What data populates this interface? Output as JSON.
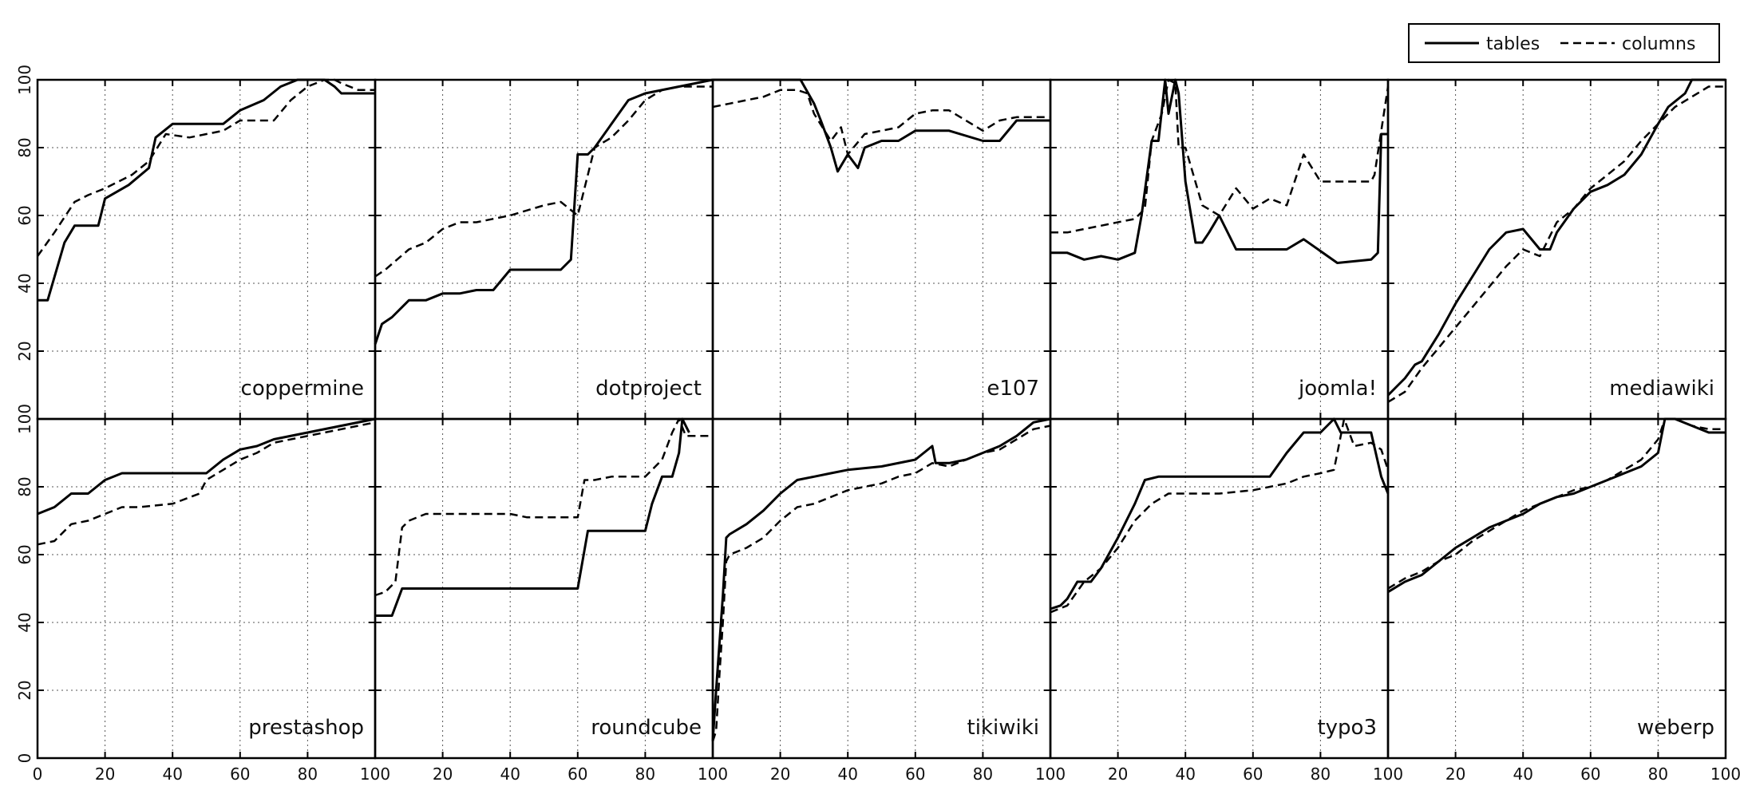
{
  "chart_data": {
    "type": "line",
    "layout": "small-multiples",
    "rows": 2,
    "cols": 5,
    "xlim": [
      0,
      100
    ],
    "ylim": [
      0,
      100
    ],
    "x_ticks": [
      0,
      20,
      40,
      60,
      80,
      100
    ],
    "y_ticks": [
      0,
      20,
      40,
      60,
      80,
      100
    ],
    "grid": true,
    "legend": {
      "position": "top-right",
      "entries": [
        {
          "label": "tables",
          "style": "solid"
        },
        {
          "label": "columns",
          "style": "dashed"
        }
      ]
    },
    "colors": {
      "line": "#000000",
      "grid": "#555555",
      "frame": "#000000"
    },
    "panels": [
      {
        "name": "coppermine",
        "series": [
          {
            "name": "tables",
            "x": [
              0,
              3,
              8,
              11,
              18,
              20,
              27,
              33,
              35,
              40,
              55,
              60,
              67,
              72,
              77,
              82,
              85,
              88,
              90,
              100
            ],
            "y": [
              35,
              35,
              52,
              57,
              57,
              65,
              69,
              74,
              83,
              87,
              87,
              91,
              94,
              98,
              100,
              100,
              100,
              98,
              96,
              96
            ]
          },
          {
            "name": "columns",
            "x": [
              0,
              5,
              11,
              15,
              20,
              28,
              33,
              38,
              45,
              55,
              60,
              70,
              75,
              80,
              85,
              88,
              90,
              95,
              100
            ],
            "y": [
              48,
              55,
              64,
              66,
              68,
              72,
              76,
              84,
              83,
              85,
              88,
              88,
              94,
              98,
              100,
              100,
              99,
              97,
              97
            ]
          }
        ]
      },
      {
        "name": "dotproject",
        "series": [
          {
            "name": "tables",
            "x": [
              0,
              2,
              5,
              10,
              15,
              20,
              25,
              30,
              35,
              40,
              45,
              50,
              55,
              58,
              60,
              63,
              65,
              70,
              75,
              80,
              90,
              100
            ],
            "y": [
              22,
              28,
              30,
              35,
              35,
              37,
              37,
              38,
              38,
              44,
              44,
              44,
              44,
              47,
              78,
              78,
              80,
              87,
              94,
              96,
              98,
              100
            ]
          },
          {
            "name": "columns",
            "x": [
              0,
              3,
              10,
              15,
              20,
              25,
              30,
              40,
              50,
              55,
              60,
              65,
              70,
              75,
              80,
              85,
              90,
              95,
              100
            ],
            "y": [
              42,
              44,
              50,
              52,
              56,
              58,
              58,
              60,
              63,
              64,
              60,
              80,
              83,
              88,
              94,
              97,
              98,
              98,
              98
            ]
          }
        ]
      },
      {
        "name": "e107",
        "series": [
          {
            "name": "tables",
            "x": [
              0,
              5,
              10,
              20,
              26,
              30,
              32,
              35,
              37,
              40,
              43,
              45,
              50,
              55,
              60,
              70,
              80,
              85,
              90,
              100
            ],
            "y": [
              100,
              100,
              100,
              100,
              100,
              93,
              88,
              80,
              73,
              78,
              74,
              80,
              82,
              82,
              85,
              85,
              82,
              82,
              88,
              88
            ]
          },
          {
            "name": "columns",
            "x": [
              0,
              5,
              10,
              15,
              20,
              25,
              28,
              30,
              35,
              38,
              40,
              45,
              50,
              55,
              60,
              65,
              70,
              80,
              85,
              90,
              100
            ],
            "y": [
              92,
              93,
              94,
              95,
              97,
              97,
              96,
              90,
              82,
              86,
              78,
              84,
              85,
              86,
              90,
              91,
              91,
              85,
              88,
              89,
              89
            ]
          }
        ]
      },
      {
        "name": "joomla!",
        "series": [
          {
            "name": "tables",
            "x": [
              0,
              5,
              10,
              15,
              20,
              25,
              27,
              30,
              32,
              34,
              35,
              37,
              38,
              40,
              43,
              45,
              47,
              50,
              55,
              60,
              70,
              75,
              85,
              95,
              97,
              98,
              100
            ],
            "y": [
              49,
              49,
              47,
              48,
              47,
              49,
              60,
              82,
              82,
              100,
              90,
              100,
              96,
              70,
              52,
              52,
              55,
              60,
              50,
              50,
              50,
              53,
              46,
              47,
              49,
              84,
              84
            ]
          },
          {
            "name": "columns",
            "x": [
              0,
              5,
              10,
              15,
              20,
              25,
              28,
              30,
              33,
              35,
              37,
              38,
              40,
              45,
              50,
              55,
              60,
              65,
              70,
              75,
              80,
              95,
              96,
              100
            ],
            "y": [
              55,
              55,
              56,
              57,
              58,
              59,
              62,
              82,
              90,
              100,
              99,
              80,
              80,
              63,
              60,
              68,
              62,
              65,
              63,
              78,
              70,
              70,
              72,
              98
            ]
          }
        ]
      },
      {
        "name": "mediawiki",
        "series": [
          {
            "name": "tables",
            "x": [
              0,
              3,
              5,
              8,
              10,
              15,
              20,
              25,
              30,
              35,
              40,
              45,
              48,
              50,
              55,
              60,
              65,
              70,
              75,
              80,
              83,
              88,
              90,
              95,
              100
            ],
            "y": [
              7,
              10,
              12,
              16,
              17,
              25,
              34,
              42,
              50,
              55,
              56,
              50,
              50,
              55,
              62,
              67,
              69,
              72,
              78,
              87,
              92,
              96,
              100,
              100,
              100
            ]
          },
          {
            "name": "columns",
            "x": [
              0,
              5,
              10,
              15,
              20,
              25,
              30,
              35,
              40,
              45,
              50,
              55,
              60,
              65,
              70,
              75,
              80,
              85,
              90,
              95,
              100
            ],
            "y": [
              5,
              8,
              15,
              21,
              27,
              33,
              39,
              45,
              50,
              48,
              58,
              62,
              68,
              72,
              76,
              82,
              87,
              92,
              95,
              98,
              98
            ]
          }
        ]
      },
      {
        "name": "prestashop",
        "series": [
          {
            "name": "tables",
            "x": [
              0,
              5,
              10,
              15,
              20,
              25,
              30,
              40,
              50,
              55,
              60,
              65,
              70,
              80,
              90,
              100
            ],
            "y": [
              72,
              74,
              78,
              78,
              82,
              84,
              84,
              84,
              84,
              88,
              91,
              92,
              94,
              96,
              98,
              100
            ]
          },
          {
            "name": "columns",
            "x": [
              0,
              5,
              10,
              15,
              20,
              25,
              30,
              40,
              48,
              50,
              55,
              60,
              65,
              70,
              80,
              90,
              100
            ],
            "y": [
              63,
              64,
              69,
              70,
              72,
              74,
              74,
              75,
              78,
              82,
              85,
              88,
              90,
              93,
              95,
              97,
              99
            ]
          }
        ]
      },
      {
        "name": "roundcube",
        "series": [
          {
            "name": "tables",
            "x": [
              0,
              5,
              8,
              20,
              30,
              40,
              50,
              60,
              63,
              70,
              75,
              80,
              82,
              85,
              88,
              90,
              91,
              93
            ],
            "y": [
              42,
              42,
              50,
              50,
              50,
              50,
              50,
              50,
              67,
              67,
              67,
              67,
              75,
              83,
              83,
              90,
              100,
              96
            ]
          },
          {
            "name": "columns",
            "x": [
              0,
              3,
              6,
              8,
              10,
              15,
              20,
              30,
              40,
              45,
              50,
              55,
              60,
              62,
              65,
              70,
              80,
              85,
              88,
              90,
              92,
              95,
              100
            ],
            "y": [
              48,
              49,
              52,
              68,
              70,
              72,
              72,
              72,
              72,
              71,
              71,
              71,
              71,
              82,
              82,
              83,
              83,
              88,
              96,
              100,
              95,
              95,
              95
            ]
          }
        ]
      },
      {
        "name": "tikiwiki",
        "series": [
          {
            "name": "tables",
            "x": [
              0,
              1,
              3,
              4,
              5,
              10,
              15,
              20,
              25,
              30,
              35,
              40,
              50,
              60,
              65,
              66,
              70,
              75,
              80,
              85,
              90,
              95,
              100
            ],
            "y": [
              5,
              20,
              48,
              65,
              66,
              69,
              73,
              78,
              82,
              83,
              84,
              85,
              86,
              88,
              92,
              87,
              87,
              88,
              90,
              92,
              95,
              99,
              100
            ]
          },
          {
            "name": "columns",
            "x": [
              0,
              1,
              2,
              3,
              4,
              5,
              10,
              15,
              20,
              25,
              30,
              35,
              40,
              45,
              50,
              55,
              60,
              65,
              70,
              75,
              80,
              85,
              90,
              95,
              100
            ],
            "y": [
              5,
              8,
              25,
              40,
              58,
              60,
              62,
              65,
              70,
              74,
              75,
              77,
              79,
              80,
              81,
              83,
              84,
              87,
              86,
              88,
              90,
              91,
              94,
              97,
              98
            ]
          }
        ]
      },
      {
        "name": "typo3",
        "series": [
          {
            "name": "tables",
            "x": [
              0,
              3,
              5,
              8,
              12,
              15,
              20,
              25,
              28,
              32,
              35,
              40,
              50,
              60,
              65,
              70,
              75,
              80,
              84,
              86,
              90,
              95,
              98,
              100
            ],
            "y": [
              44,
              45,
              47,
              52,
              52,
              56,
              65,
              75,
              82,
              83,
              83,
              83,
              83,
              83,
              83,
              90,
              96,
              96,
              100,
              96,
              96,
              96,
              83,
              78
            ]
          },
          {
            "name": "columns",
            "x": [
              0,
              5,
              10,
              15,
              20,
              25,
              30,
              35,
              40,
              50,
              60,
              65,
              70,
              75,
              80,
              84,
              87,
              90,
              95,
              98,
              100
            ],
            "y": [
              43,
              45,
              52,
              56,
              62,
              70,
              75,
              78,
              78,
              78,
              79,
              80,
              81,
              83,
              84,
              85,
              100,
              92,
              93,
              91,
              85
            ]
          }
        ]
      },
      {
        "name": "weberp",
        "series": [
          {
            "name": "tables",
            "x": [
              0,
              5,
              10,
              15,
              20,
              25,
              30,
              35,
              40,
              45,
              50,
              55,
              60,
              65,
              70,
              75,
              80,
              82,
              85,
              90,
              95,
              100
            ],
            "y": [
              49,
              52,
              54,
              58,
              62,
              65,
              68,
              70,
              72,
              75,
              77,
              78,
              80,
              82,
              84,
              86,
              90,
              100,
              100,
              98,
              96,
              96
            ]
          },
          {
            "name": "columns",
            "x": [
              0,
              5,
              10,
              15,
              20,
              25,
              30,
              35,
              40,
              45,
              50,
              55,
              60,
              65,
              70,
              75,
              80,
              82,
              85,
              90,
              95,
              100
            ],
            "y": [
              50,
              53,
              55,
              58,
              60,
              64,
              67,
              70,
              73,
              75,
              77,
              79,
              80,
              82,
              85,
              88,
              94,
              100,
              100,
              98,
              97,
              97
            ]
          }
        ]
      }
    ]
  }
}
